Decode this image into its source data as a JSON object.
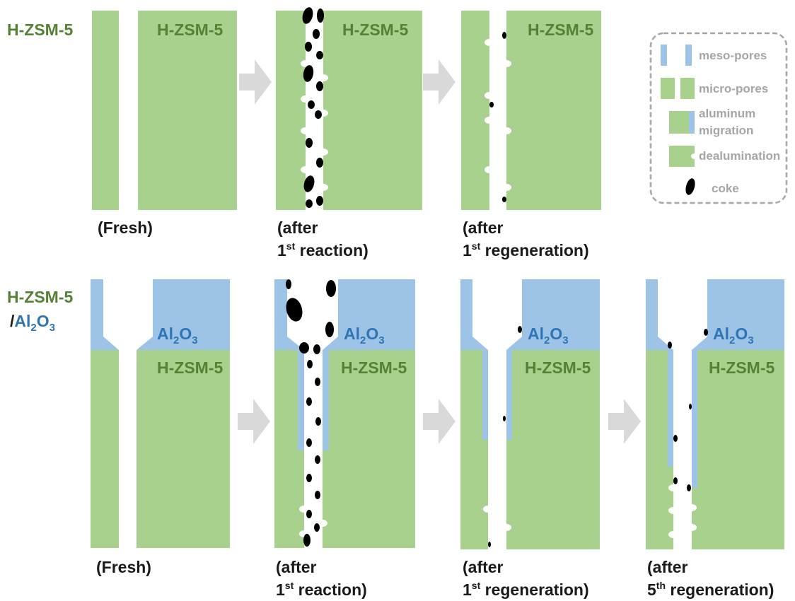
{
  "colors": {
    "zeolite": "#a9d18e",
    "alumina": "#9dc3e6",
    "coke": "#000000",
    "arrow": "#d9d9d9",
    "legend_border": "#a6a6a6",
    "label_green": "#548235",
    "label_blue": "#2e75b6"
  },
  "row1": {
    "sample_label": "H-ZSM-5",
    "panels": [
      {
        "block_label": "H-ZSM-5",
        "caption_line1": "(Fresh)",
        "caption_line2": "",
        "caption_sup": "",
        "caption_rest": ""
      },
      {
        "block_label": "H-ZSM-5",
        "caption_line1": "(after",
        "caption_line2": "1",
        "caption_sup": "st",
        "caption_rest": " reaction)"
      },
      {
        "block_label": "H-ZSM-5",
        "caption_line1": "(after",
        "caption_line2": "1",
        "caption_sup": "st",
        "caption_rest": " regeneration)"
      }
    ]
  },
  "row2": {
    "sample_label_line1": "H-ZSM-5",
    "sample_label_slash": "/",
    "sample_label_al": "Al",
    "sample_label_sub2": "2",
    "sample_label_o": "O",
    "sample_label_sub3": "3",
    "panels": [
      {
        "caption_line1": "(Fresh)",
        "caption_line2": "",
        "caption_sup": "",
        "caption_rest": ""
      },
      {
        "caption_line1": "(after",
        "caption_line2": "1",
        "caption_sup": "st",
        "caption_rest": " reaction)"
      },
      {
        "caption_line1": "(after",
        "caption_line2": "1",
        "caption_sup": "st",
        "caption_rest": " regeneration)"
      },
      {
        "caption_line1": "(after",
        "caption_line2": "5",
        "caption_sup": "th",
        "caption_rest": " regeneration)"
      }
    ],
    "block_label_zeolite": "H-ZSM-5",
    "block_label_al": "Al",
    "block_label_sub2": "2",
    "block_label_o": "O",
    "block_label_sub3": "3"
  },
  "legend": {
    "items": [
      {
        "label": "meso-pores"
      },
      {
        "label": "micro-pores"
      },
      {
        "label_line1": "aluminum",
        "label_line2": "migration"
      },
      {
        "label": "dealumination"
      },
      {
        "label": "coke"
      }
    ]
  }
}
